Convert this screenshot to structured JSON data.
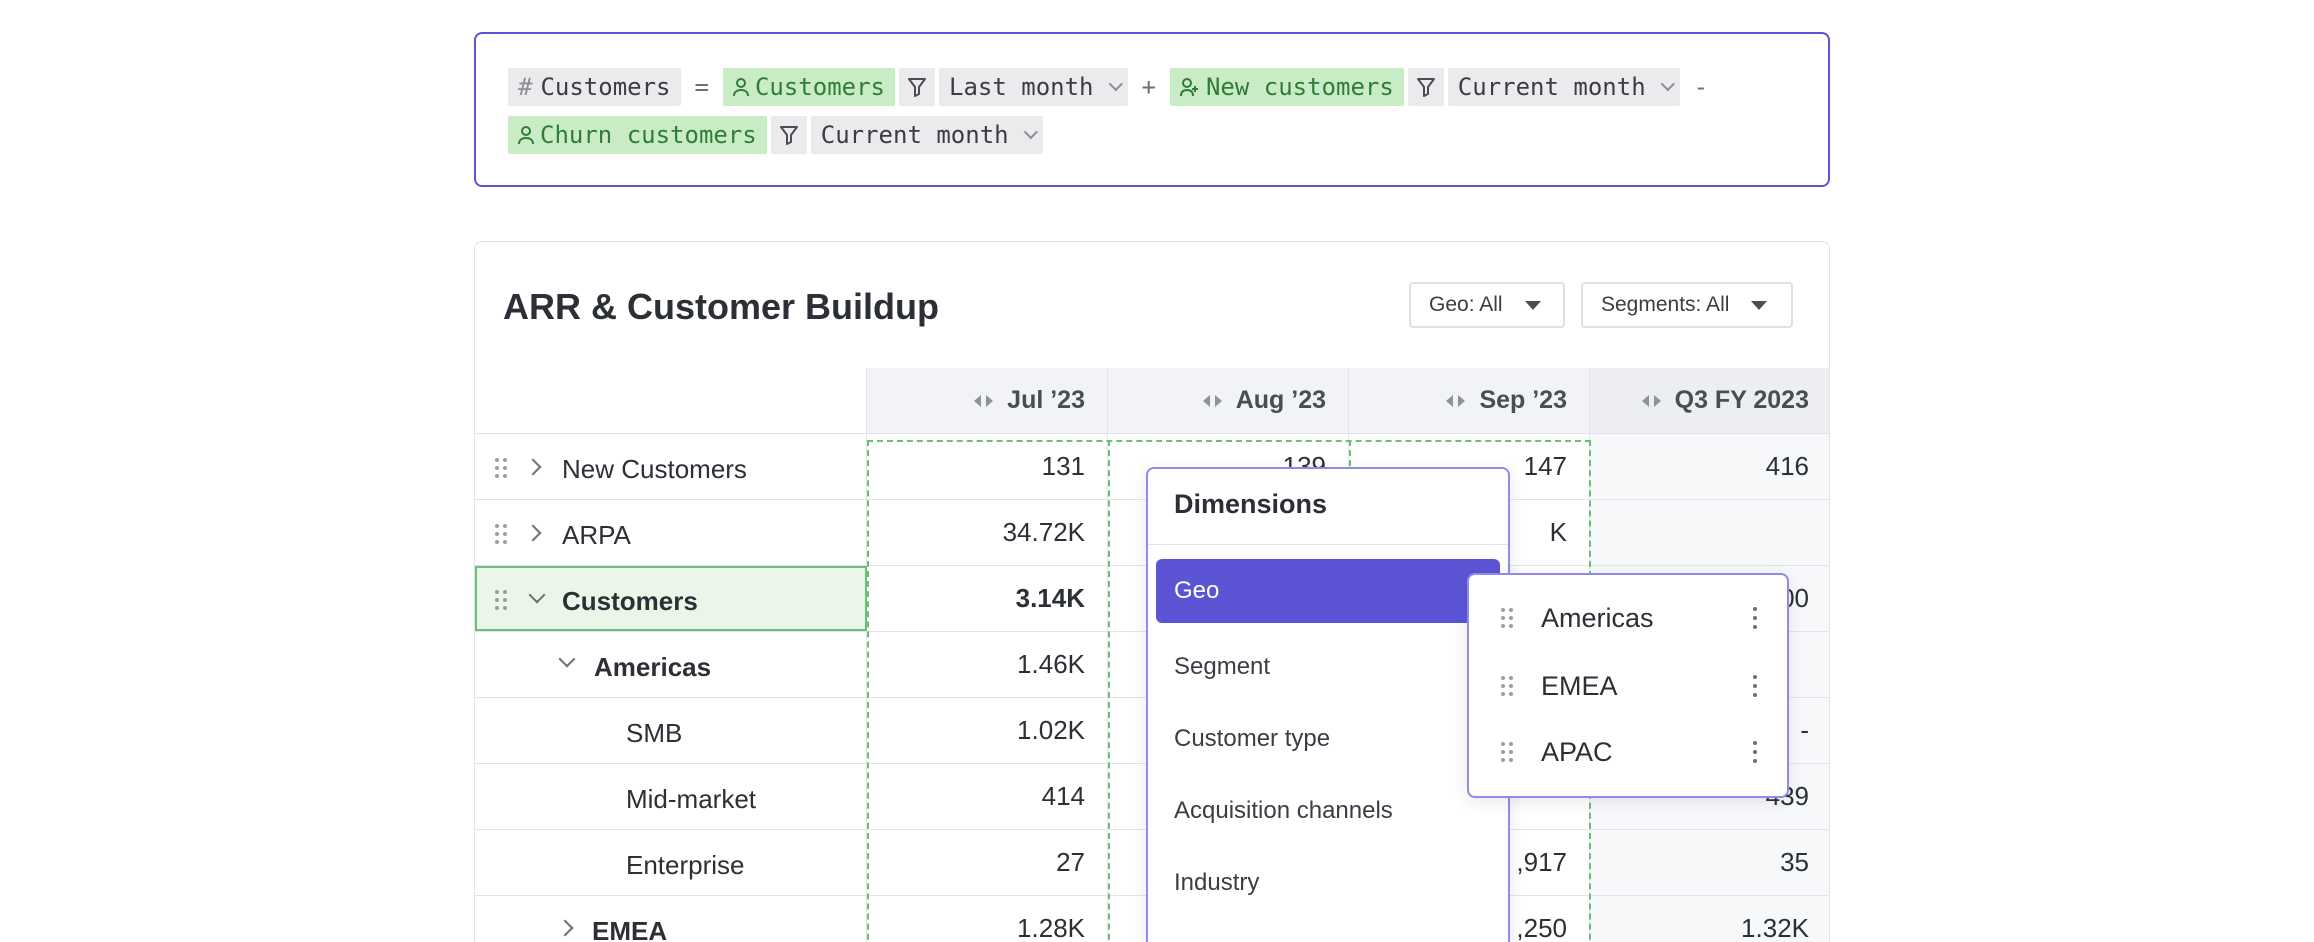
{
  "formula": {
    "metric": "Customers",
    "hash": "#",
    "equals": "=",
    "plus": "+",
    "minus": "-",
    "terms": [
      {
        "name": "Customers",
        "period": "Last month"
      },
      {
        "name": "New customers",
        "period": "Current month"
      },
      {
        "name": "Churn customers",
        "period": "Current month"
      }
    ]
  },
  "card": {
    "title": "ARR & Customer Buildup",
    "geo_filter": "Geo: All",
    "segment_filter": "Segments: All"
  },
  "table": {
    "columns": [
      "Jul ’23",
      "Aug ’23",
      "Sep ’23",
      "Q3 FY 2023"
    ],
    "rows": [
      {
        "label": "New Customers",
        "values": [
          "131",
          "139",
          "147",
          "416"
        ]
      },
      {
        "label": "ARPA",
        "values": [
          "34.72K",
          "",
          "K",
          ""
        ]
      },
      {
        "label": "Customers",
        "values": [
          "3.14K",
          "",
          "",
          "00"
        ]
      },
      {
        "label": "Americas",
        "values": [
          "1.46K",
          "",
          "",
          ""
        ]
      },
      {
        "label": "SMB",
        "values": [
          "1.02K",
          "",
          "",
          "-"
        ]
      },
      {
        "label": "Mid-market",
        "values": [
          "414",
          "",
          "",
          "439"
        ]
      },
      {
        "label": "Enterprise",
        "values": [
          "27",
          "",
          ",917",
          "35"
        ]
      },
      {
        "label": "EMEA",
        "values": [
          "1.28K",
          "",
          ",250",
          "1.32K"
        ]
      }
    ]
  },
  "dimensions": {
    "title": "Dimensions",
    "items": [
      "Geo",
      "Segment",
      "Customer type",
      "Acquisition channels",
      "Industry"
    ],
    "active": "Geo"
  },
  "geo_values": [
    "Americas",
    "EMEA",
    "APAC"
  ],
  "colors": {
    "accent": "#5b55d6",
    "chip_green": "#c9ecc6",
    "selection_green": "#6cbf76"
  }
}
